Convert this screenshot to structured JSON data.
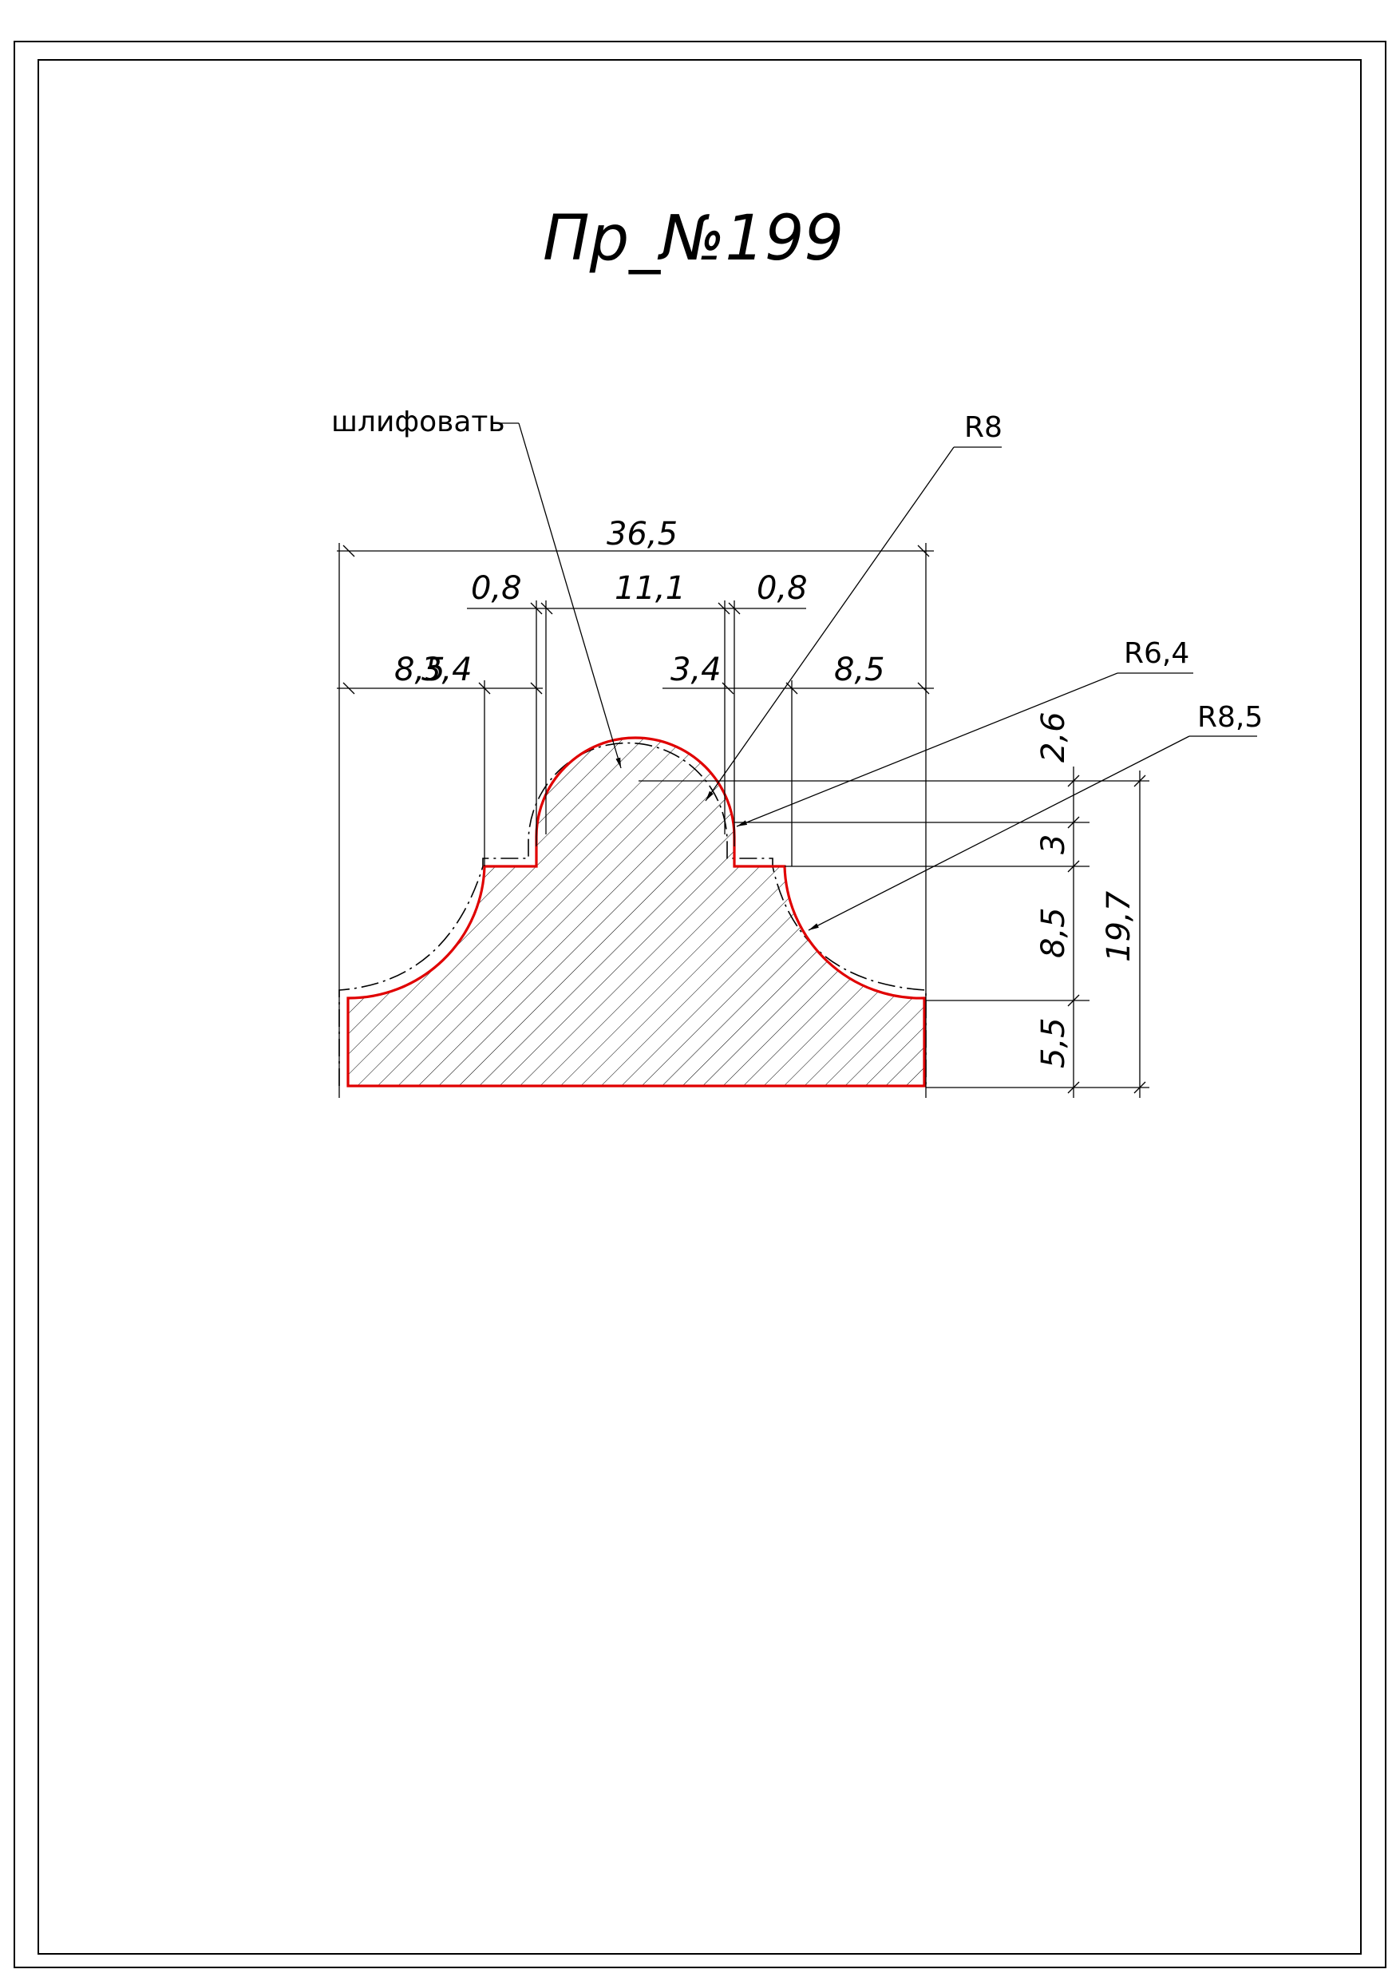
{
  "title": "Пр_№199",
  "callouts": {
    "grind_note": "шлифовать",
    "radius_top": "R8",
    "radius_neck": "R6,4",
    "radius_side": "R8,5"
  },
  "dimensions": {
    "total_width": "36,5",
    "left_gap": "0,8",
    "top_width": "11,1",
    "right_gap": "0,8",
    "left_outer": "8,5",
    "left_inner": "3,4",
    "right_inner": "3,4",
    "right_outer": "8,5",
    "v_top": "2,6",
    "v_step": "3",
    "v_mid": "8,5",
    "v_base": "5,5",
    "total_height": "19,7"
  },
  "colors": {
    "profile_outline": "#e00000",
    "lines": "#000000"
  }
}
